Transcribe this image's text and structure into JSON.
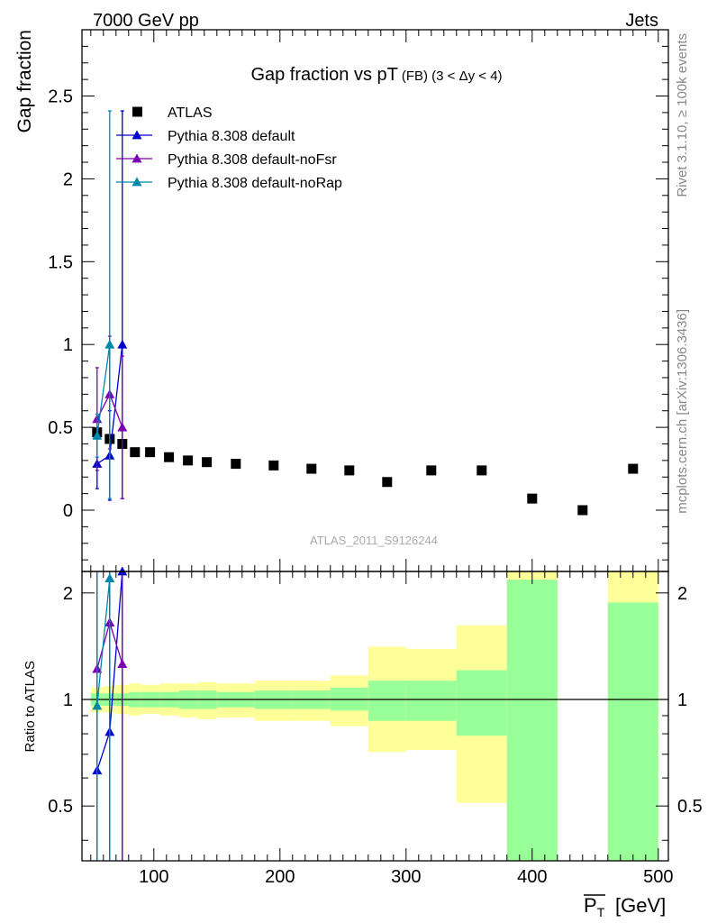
{
  "header": {
    "left": "7000 GeV pp",
    "right": "Jets"
  },
  "title": {
    "main": "Gap fraction vs pT",
    "sub": "(FB) (3 < Δy < 4)"
  },
  "side_labels": {
    "rivet": "Rivet 3.1.10, ≥ 100k events",
    "mcplots": "mcplots.cern.ch [arXiv:1306.3436]"
  },
  "watermark": "ATLAS_2011_S9126244",
  "colors": {
    "data": "#000000",
    "default": "#0000cc",
    "noFsr": "#7a00b0",
    "noRap": "#0088aa",
    "band_inner": "#99ff99",
    "band_outer": "#ffff99"
  },
  "chart_data": [
    {
      "type": "scatter",
      "panel": "main",
      "ylabel": "Gap fraction",
      "ylim": [
        -0.37,
        2.9
      ],
      "xlim": [
        43,
        508
      ],
      "yticks": [
        0,
        0.5,
        1,
        1.5,
        2,
        2.5
      ],
      "ytick_labels": [
        "0",
        "0.5",
        "1",
        "1.5",
        "2",
        "2.5"
      ],
      "legend": {
        "placement": "top-left",
        "entries": [
          "ATLAS",
          "Pythia 8.308 default",
          "Pythia 8.308 default-noFsr",
          "Pythia 8.308 default-noRap"
        ]
      },
      "series": [
        {
          "name": "ATLAS",
          "marker": "square",
          "x": [
            55,
            65,
            75,
            85,
            97,
            112,
            127,
            142,
            165,
            195,
            225,
            255,
            285,
            320,
            360,
            400,
            440,
            480
          ],
          "y": [
            0.47,
            0.43,
            0.4,
            0.35,
            0.35,
            0.32,
            0.3,
            0.29,
            0.28,
            0.27,
            0.25,
            0.24,
            0.17,
            0.24,
            0.24,
            0.07,
            0.0,
            0.25
          ]
        },
        {
          "name": "Pythia 8.308 default",
          "marker": "triangle",
          "x": [
            55,
            65,
            75
          ],
          "y": [
            0.28,
            0.33,
            1.0
          ],
          "err_low": [
            0.15,
            0.27,
            0.93
          ],
          "err_high": [
            0.15,
            0.27,
            1.41
          ]
        },
        {
          "name": "Pythia 8.308 default-noFsr",
          "marker": "triangle",
          "x": [
            55,
            65,
            75
          ],
          "y": [
            0.55,
            0.7,
            0.5
          ],
          "err_low": [
            0.31,
            0.33,
            0.43
          ],
          "err_high": [
            0.31,
            0.35,
            0.43
          ]
        },
        {
          "name": "Pythia 8.308 default-noRap",
          "marker": "triangle",
          "x": [
            55,
            65,
            75
          ],
          "y": [
            0.45,
            1.0,
            null
          ],
          "err_low": [
            0.13,
            0.93,
            null
          ],
          "err_high": [
            0.13,
            1.41,
            null
          ]
        }
      ]
    },
    {
      "type": "line",
      "panel": "ratio",
      "ylabel": "Ratio to ATLAS",
      "xlabel": "P_T [GeV]",
      "xlim": [
        43,
        508
      ],
      "xticks": [
        100,
        200,
        300,
        400,
        500
      ],
      "xtick_labels": [
        "100",
        "200",
        "300",
        "400",
        "500"
      ],
      "ylim": [
        0.35,
        2.3
      ],
      "yscale": "log",
      "yticks": [
        0.5,
        1,
        2
      ],
      "ytick_labels": [
        "0.5",
        "1",
        "2"
      ],
      "bands": {
        "bins": [
          [
            50,
            60
          ],
          [
            60,
            70
          ],
          [
            70,
            80
          ],
          [
            80,
            90
          ],
          [
            90,
            105
          ],
          [
            105,
            120
          ],
          [
            120,
            135
          ],
          [
            135,
            150
          ],
          [
            150,
            180
          ],
          [
            180,
            210
          ],
          [
            210,
            240
          ],
          [
            240,
            270
          ],
          [
            270,
            300
          ],
          [
            300,
            340
          ],
          [
            340,
            380
          ],
          [
            380,
            420
          ],
          [
            460,
            500
          ]
        ],
        "inner_low": [
          0.96,
          0.96,
          0.96,
          0.95,
          0.95,
          0.95,
          0.94,
          0.94,
          0.95,
          0.94,
          0.94,
          0.93,
          0.87,
          0.87,
          0.79,
          0.3,
          0.3
        ],
        "inner_high": [
          1.04,
          1.04,
          1.04,
          1.05,
          1.05,
          1.05,
          1.06,
          1.06,
          1.05,
          1.06,
          1.06,
          1.08,
          1.13,
          1.13,
          1.21,
          2.18,
          1.88
        ],
        "outer_low": [
          0.92,
          0.92,
          0.91,
          0.9,
          0.91,
          0.9,
          0.89,
          0.88,
          0.89,
          0.87,
          0.87,
          0.84,
          0.71,
          0.72,
          0.51,
          0.3,
          0.3
        ],
        "outer_high": [
          1.08,
          1.09,
          1.1,
          1.11,
          1.1,
          1.11,
          1.11,
          1.12,
          1.11,
          1.13,
          1.13,
          1.17,
          1.41,
          1.39,
          1.62,
          2.5,
          2.5
        ]
      },
      "series": [
        {
          "name": "Pythia 8.308 default",
          "x": [
            55,
            65,
            75
          ],
          "y": [
            0.63,
            0.81,
            2.3
          ]
        },
        {
          "name": "Pythia 8.308 default-noFsr",
          "x": [
            55,
            65,
            75
          ],
          "y": [
            1.22,
            1.65,
            1.26
          ]
        },
        {
          "name": "Pythia 8.308 default-noRap",
          "x": [
            55,
            65,
            75
          ],
          "y": [
            0.96,
            2.2,
            null
          ]
        }
      ]
    }
  ]
}
